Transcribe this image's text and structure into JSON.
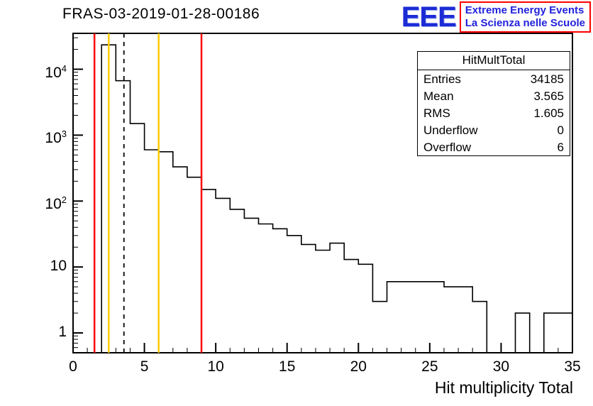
{
  "title": "FRAS-03-2019-01-28-00186",
  "logo": {
    "eee": "EEE",
    "line1": "Extreme Energy Events",
    "line2": "La Scienza nelle Scuole",
    "text_color": "#2222dd",
    "border_color": "#ff0000"
  },
  "stats": {
    "header": "HitMultTotal",
    "rows": [
      {
        "label": "Entries",
        "value": "34185"
      },
      {
        "label": "Mean",
        "value": "3.565"
      },
      {
        "label": "RMS",
        "value": "1.605"
      },
      {
        "label": "Underflow",
        "value": "0"
      },
      {
        "label": "Overflow",
        "value": "6"
      }
    ]
  },
  "chart_data": {
    "type": "bar",
    "title": "FRAS-03-2019-01-28-00186",
    "xlabel": "Hit multiplicity Total",
    "ylabel": "",
    "legend": "none",
    "grid": false,
    "bin_width": 1,
    "xlim": [
      0,
      35
    ],
    "ylog": true,
    "ylim_log": [
      0.5,
      35000
    ],
    "counts": [
      0,
      0,
      23400,
      6700,
      1500,
      600,
      560,
      330,
      230,
      150,
      110,
      75,
      55,
      45,
      38,
      30,
      22,
      18,
      23,
      13,
      11,
      3,
      6,
      6,
      6,
      6,
      5,
      5,
      3,
      0,
      0,
      2,
      0,
      2,
      2
    ],
    "x_major_ticks": [
      0,
      5,
      10,
      15,
      20,
      25,
      30,
      35
    ],
    "y_major_ticks": [
      {
        "value": 1,
        "base": "1",
        "exp": ""
      },
      {
        "value": 10,
        "base": "10",
        "exp": ""
      },
      {
        "value": 100,
        "base": "10",
        "exp": "2"
      },
      {
        "value": 1000,
        "base": "10",
        "exp": "3"
      },
      {
        "value": 10000,
        "base": "10",
        "exp": "4"
      }
    ],
    "line_color": "#000000",
    "vlines": [
      {
        "x": 1.5,
        "color": "#ff0000",
        "style": "solid",
        "name": "red-low-cut"
      },
      {
        "x": 2.5,
        "color": "#ffcc00",
        "style": "solid",
        "name": "yellow-low-cut"
      },
      {
        "x": 3.565,
        "color": "#000000",
        "style": "dashed",
        "name": "mean-dashed-line"
      },
      {
        "x": 6,
        "color": "#ffcc00",
        "style": "solid",
        "name": "yellow-high-cut"
      },
      {
        "x": 9,
        "color": "#ff0000",
        "style": "solid",
        "name": "red-high-cut"
      }
    ]
  }
}
